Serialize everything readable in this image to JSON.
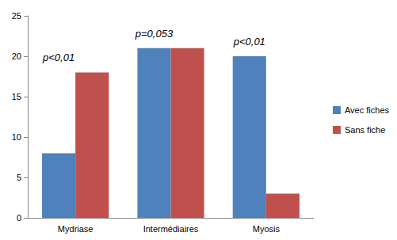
{
  "chart_data": {
    "type": "bar",
    "categories": [
      "Mydriase",
      "Intermédiaires",
      "Myosis"
    ],
    "series": [
      {
        "name": "Avec fiches",
        "color": "#4f81bd",
        "values": [
          8,
          21,
          20
        ]
      },
      {
        "name": "Sans fiche",
        "color": "#c0504d",
        "values": [
          18,
          21,
          3
        ]
      }
    ],
    "annotations": [
      {
        "category": "Mydriase",
        "text": "p<0,01"
      },
      {
        "category": "Intermédiaires",
        "text": "p=0,053"
      },
      {
        "category": "Myosis",
        "text": "p<0,01"
      }
    ],
    "ylim": [
      0,
      25
    ],
    "yticks": [
      0,
      5,
      10,
      15,
      20,
      25
    ],
    "grid": false,
    "legend": "right"
  }
}
